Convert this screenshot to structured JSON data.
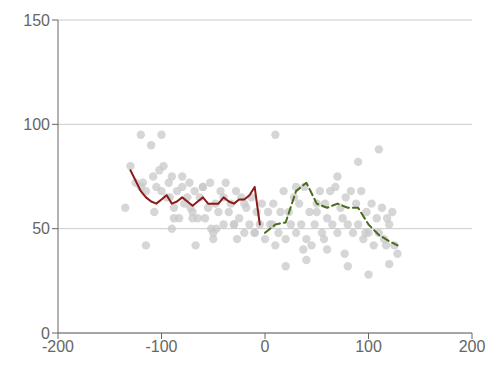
{
  "chart_data": {
    "type": "scatter",
    "xlim": [
      -200,
      200
    ],
    "ylim": [
      0,
      150
    ],
    "xticks": [
      -200,
      -100,
      0,
      100,
      200
    ],
    "yticks": [
      0,
      50,
      100,
      150
    ],
    "grid": "y",
    "series": [
      {
        "type": "scatter",
        "color": "#c8c8c8",
        "marker": "circle",
        "x": [
          -130,
          -125,
          -120,
          -115,
          -110,
          -108,
          -105,
          -102,
          -100,
          -98,
          -95,
          -93,
          -90,
          -88,
          -85,
          -83,
          -80,
          -78,
          -75,
          -73,
          -70,
          -68,
          -65,
          -63,
          -60,
          -58,
          -55,
          -53,
          -50,
          -48,
          -45,
          -43,
          -40,
          -38,
          -35,
          -33,
          -30,
          -28,
          -25,
          -23,
          -20,
          -18,
          -15,
          -13,
          -10,
          -8,
          -5,
          -3,
          0,
          3,
          5,
          8,
          10,
          13,
          15,
          18,
          20,
          23,
          25,
          28,
          30,
          33,
          35,
          38,
          40,
          43,
          45,
          48,
          50,
          53,
          55,
          58,
          60,
          63,
          65,
          68,
          70,
          73,
          75,
          78,
          80,
          83,
          85,
          88,
          90,
          93,
          95,
          98,
          100,
          103,
          105,
          108,
          110,
          113,
          115,
          118,
          120,
          123,
          125,
          128,
          -120,
          -100,
          -80,
          -60,
          -40,
          -20,
          10,
          30,
          50,
          70,
          90,
          110,
          -115,
          -90,
          -70,
          -50,
          -30,
          -10,
          20,
          40,
          60,
          80,
          100,
          120,
          -135,
          -107,
          -88,
          -67,
          -47,
          -27,
          7,
          37,
          57,
          77,
          97,
          117,
          -118,
          -92,
          -72,
          -52
        ],
        "values": [
          80,
          72,
          70,
          68,
          90,
          75,
          70,
          78,
          68,
          80,
          65,
          72,
          75,
          60,
          68,
          55,
          70,
          62,
          65,
          72,
          58,
          68,
          55,
          65,
          70,
          55,
          60,
          72,
          48,
          62,
          58,
          68,
          52,
          72,
          58,
          62,
          52,
          68,
          55,
          65,
          48,
          60,
          52,
          65,
          48,
          58,
          52,
          62,
          45,
          58,
          52,
          62,
          42,
          48,
          58,
          68,
          45,
          58,
          52,
          65,
          48,
          62,
          52,
          70,
          45,
          58,
          42,
          52,
          58,
          68,
          48,
          62,
          55,
          68,
          52,
          70,
          48,
          60,
          55,
          65,
          52,
          68,
          48,
          62,
          52,
          68,
          45,
          58,
          48,
          62,
          42,
          55,
          48,
          60,
          45,
          55,
          52,
          58,
          42,
          38,
          95,
          95,
          75,
          70,
          65,
          62,
          95,
          70,
          62,
          75,
          82,
          88,
          42,
          50,
          55,
          45,
          52,
          48,
          32,
          35,
          40,
          32,
          28,
          33,
          60,
          58,
          55,
          42,
          50,
          45,
          52,
          40,
          45,
          38,
          48,
          42,
          72,
          65,
          60,
          50
        ]
      },
      {
        "type": "line",
        "color": "#8b1a1a",
        "line_style": "solid",
        "x": [
          -130,
          -120,
          -115,
          -110,
          -105,
          -100,
          -95,
          -90,
          -85,
          -80,
          -75,
          -70,
          -65,
          -60,
          -55,
          -50,
          -45,
          -40,
          -35,
          -30,
          -25,
          -20,
          -15,
          -10,
          -5
        ],
        "values": [
          78,
          68,
          65,
          63,
          62,
          64,
          66,
          62,
          63,
          65,
          63,
          61,
          63,
          65,
          62,
          62,
          62,
          65,
          63,
          62,
          64,
          64,
          66,
          70,
          52
        ]
      },
      {
        "type": "line",
        "color": "#4a6b1a",
        "line_style": "dashed",
        "x": [
          0,
          10,
          20,
          30,
          40,
          50,
          60,
          70,
          80,
          90,
          100,
          110,
          120,
          128
        ],
        "values": [
          48,
          52,
          53,
          68,
          72,
          62,
          60,
          62,
          60,
          60,
          52,
          47,
          44,
          42
        ]
      }
    ]
  }
}
